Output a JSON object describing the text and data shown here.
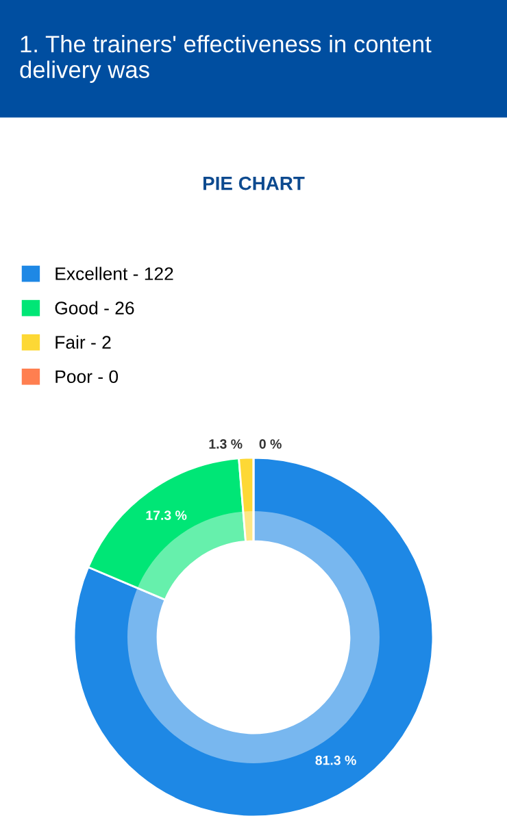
{
  "chart_data": {
    "type": "donut",
    "title": "1. The trainers' effectiveness in content delivery was",
    "subtitle": "PIE CHART",
    "categories": [
      "Excellent - 122",
      "Good - 26",
      "Fair - 2",
      "Poor - 0"
    ],
    "values": [
      81.3,
      17.3,
      1.3,
      0
    ],
    "colors": [
      "#1e88e5",
      "#00e676",
      "#fdd835",
      "#ff7f50"
    ],
    "value_labels": [
      "81.3 %",
      "17.3 %",
      "1.3 %",
      "0 %"
    ],
    "legend": "top left"
  }
}
